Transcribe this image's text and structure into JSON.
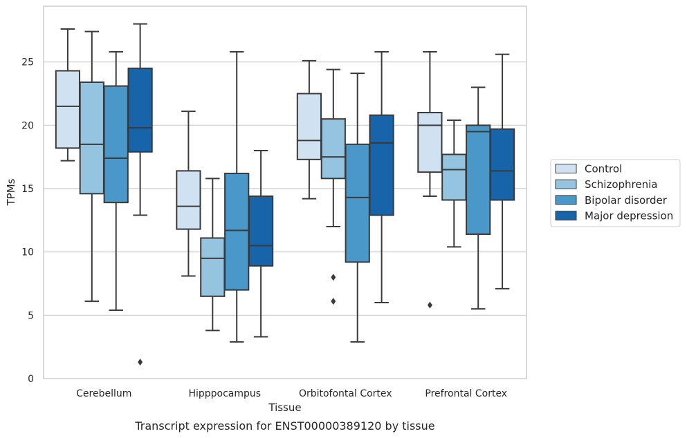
{
  "chart_data": {
    "type": "box",
    "title": "",
    "caption": "Transcript expression for ENST00000389120 by tissue",
    "xlabel": "Tissue",
    "ylabel": "TPMs",
    "ylim": [
      0,
      29.4
    ],
    "yticks": [
      0,
      5,
      10,
      15,
      20,
      25
    ],
    "grid": "horizontal",
    "legend_position": "right",
    "categories": [
      "Cerebellum",
      "Hipppocampus",
      "Orbitofontal Cortex",
      "Prefrontal Cortex"
    ],
    "series": [
      {
        "name": "Control",
        "color": "#d0e1f2",
        "boxes": [
          {
            "min": 17.2,
            "q1": 18.2,
            "median": 21.5,
            "q3": 24.3,
            "max": 27.6,
            "outliers": []
          },
          {
            "min": 8.1,
            "q1": 11.8,
            "median": 13.6,
            "q3": 16.4,
            "max": 21.1,
            "outliers": []
          },
          {
            "min": 14.2,
            "q1": 17.3,
            "median": 18.8,
            "q3": 22.5,
            "max": 25.1,
            "outliers": []
          },
          {
            "min": 14.4,
            "q1": 16.3,
            "median": 20.0,
            "q3": 21.0,
            "max": 25.8,
            "outliers": [
              5.8
            ]
          }
        ]
      },
      {
        "name": "Schizophrenia",
        "color": "#94c4df",
        "boxes": [
          {
            "min": 6.1,
            "q1": 14.6,
            "median": 18.5,
            "q3": 23.4,
            "max": 27.4,
            "outliers": []
          },
          {
            "min": 3.8,
            "q1": 6.5,
            "median": 9.5,
            "q3": 11.1,
            "max": 15.8,
            "outliers": []
          },
          {
            "min": 12.0,
            "q1": 15.8,
            "median": 17.5,
            "q3": 20.5,
            "max": 24.4,
            "outliers": [
              8.0,
              6.1
            ]
          },
          {
            "min": 10.4,
            "q1": 14.1,
            "median": 16.5,
            "q3": 17.7,
            "max": 20.4,
            "outliers": []
          }
        ]
      },
      {
        "name": "Bipolar disorder",
        "color": "#4a98c9",
        "boxes": [
          {
            "min": 5.4,
            "q1": 13.9,
            "median": 17.4,
            "q3": 23.1,
            "max": 25.8,
            "outliers": []
          },
          {
            "min": 2.9,
            "q1": 7.0,
            "median": 11.7,
            "q3": 16.2,
            "max": 25.8,
            "outliers": []
          },
          {
            "min": 2.9,
            "q1": 9.2,
            "median": 14.3,
            "q3": 18.5,
            "max": 24.1,
            "outliers": []
          },
          {
            "min": 5.5,
            "q1": 11.4,
            "median": 19.5,
            "q3": 20.0,
            "max": 23.0,
            "outliers": []
          }
        ]
      },
      {
        "name": "Major depression",
        "color": "#1764ab",
        "boxes": [
          {
            "min": 12.9,
            "q1": 17.9,
            "median": 19.8,
            "q3": 24.5,
            "max": 28.0,
            "outliers": [
              1.3
            ]
          },
          {
            "min": 3.3,
            "q1": 8.9,
            "median": 10.5,
            "q3": 14.4,
            "max": 18.0,
            "outliers": []
          },
          {
            "min": 6.0,
            "q1": 12.9,
            "median": 18.6,
            "q3": 20.8,
            "max": 25.8,
            "outliers": []
          },
          {
            "min": 7.1,
            "q1": 14.1,
            "median": 16.4,
            "q3": 19.7,
            "max": 25.6,
            "outliers": []
          }
        ]
      }
    ]
  }
}
